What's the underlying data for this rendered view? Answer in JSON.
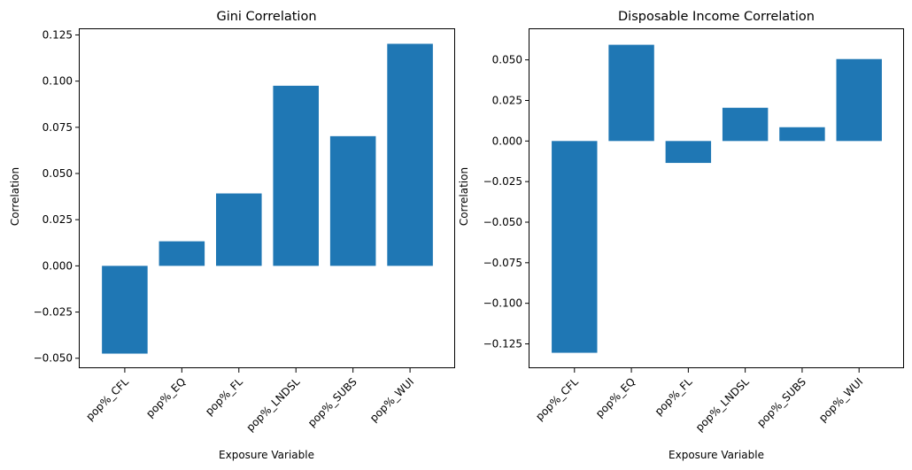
{
  "chart_data": [
    {
      "type": "bar",
      "title": "Gini Correlation",
      "xlabel": "Exposure Variable",
      "ylabel": "Correlation",
      "categories": [
        "pop%_CFL",
        "pop%_EQ",
        "pop%_FL",
        "pop%_LNDSL",
        "pop%_SUBS",
        "pop%_WUI"
      ],
      "values": [
        -0.0475,
        0.0133,
        0.0392,
        0.0975,
        0.0702,
        0.1202
      ],
      "yticks": [
        -0.05,
        -0.025,
        0.0,
        0.025,
        0.05,
        0.075,
        0.1,
        0.125
      ],
      "ytick_labels": [
        "−0.050",
        "−0.025",
        "0.000",
        "0.025",
        "0.050",
        "0.075",
        "0.100",
        "0.125"
      ],
      "ylim": [
        -0.0554,
        0.1281
      ],
      "grid": false,
      "bar_color": "#1f77b4"
    },
    {
      "type": "bar",
      "title": "Disposable Income Correlation",
      "xlabel": "Exposure Variable",
      "ylabel": "Correlation",
      "categories": [
        "pop%_CFL",
        "pop%_EQ",
        "pop%_FL",
        "pop%_LNDSL",
        "pop%_SUBS",
        "pop%_WUI"
      ],
      "values": [
        -0.1305,
        0.0593,
        -0.0135,
        0.0205,
        0.0085,
        0.0505
      ],
      "yticks": [
        -0.125,
        -0.1,
        -0.075,
        -0.05,
        -0.025,
        0.0,
        0.025,
        0.05
      ],
      "ytick_labels": [
        "−0.125",
        "−0.100",
        "−0.075",
        "−0.050",
        "−0.025",
        "0.000",
        "0.025",
        "0.050"
      ],
      "ylim": [
        -0.14,
        0.0689
      ],
      "grid": false,
      "bar_color": "#1f77b4"
    }
  ]
}
